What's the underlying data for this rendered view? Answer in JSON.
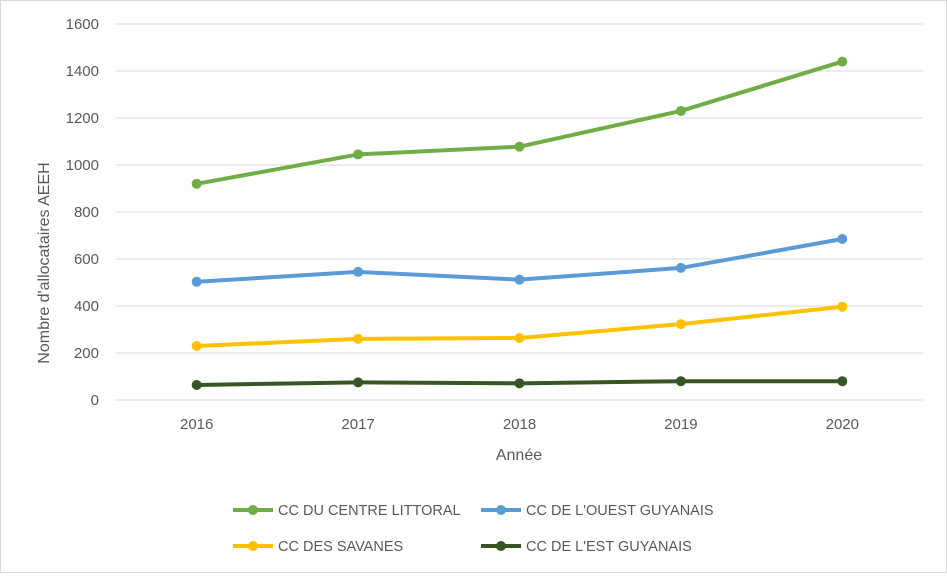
{
  "chart_data": {
    "type": "line",
    "title": "",
    "xlabel": "Année",
    "ylabel": "Nombre d'allocataires AEEH",
    "categories": [
      "2016",
      "2017",
      "2018",
      "2019",
      "2020"
    ],
    "ylim": [
      0,
      1600
    ],
    "yticks": [
      0,
      200,
      400,
      600,
      800,
      1000,
      1200,
      1400,
      1600
    ],
    "grid": true,
    "legend_position": "bottom",
    "series": [
      {
        "name": "CC DU CENTRE LITTORAL",
        "color": "#70ad47",
        "values": [
          920,
          1045,
          1078,
          1230,
          1440
        ]
      },
      {
        "name": "CC DE L'OUEST GUYANAIS",
        "color": "#5b9bd5",
        "values": [
          503,
          545,
          512,
          562,
          685
        ]
      },
      {
        "name": "CC DES SAVANES",
        "color": "#ffc000",
        "values": [
          230,
          260,
          264,
          323,
          397
        ]
      },
      {
        "name": "CC DE L'EST GUYANAIS",
        "color": "#375623",
        "values": [
          64,
          75,
          71,
          80,
          80
        ]
      }
    ]
  }
}
